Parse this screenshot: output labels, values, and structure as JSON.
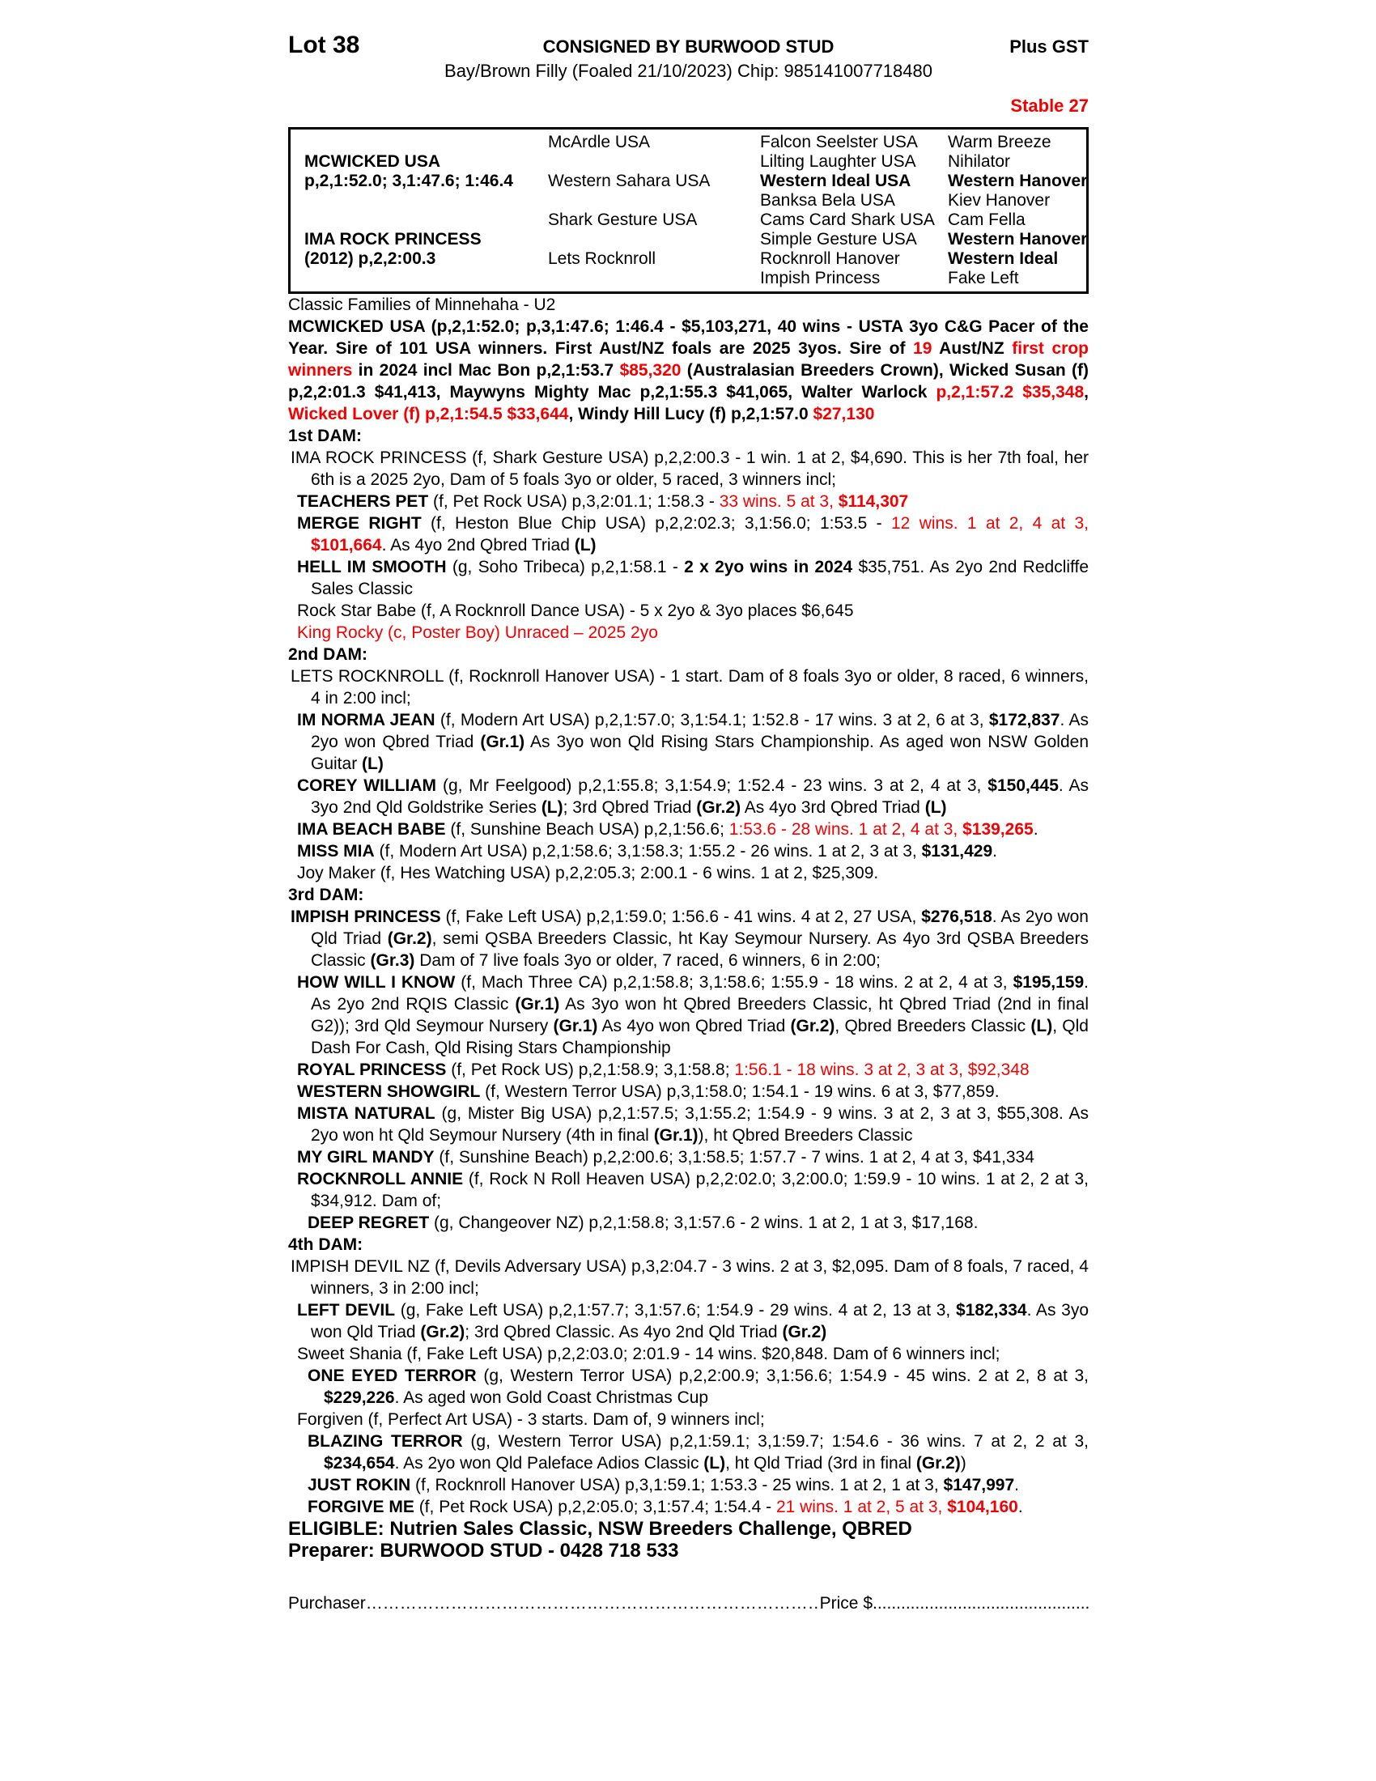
{
  "colors": {
    "accent_red": "#f40000"
  },
  "header": {
    "lot": "Lot 38",
    "consigned": "CONSIGNED BY BURWOOD STUD",
    "plus_gst": "Plus GST",
    "description": "Bay/Brown Filly (Foaled 21/10/2023) Chip: 985141007718480",
    "stable": "Stable 27"
  },
  "pedigree": {
    "sire": {
      "name": "MCWICKED USA",
      "record": "p,2,1:52.0; 3,1:47.6; 1:46.4"
    },
    "dam": {
      "name": "IMA ROCK PRINCESS",
      "record": "(2012) p,2,2:00.3"
    },
    "gen2": [
      "McArdle USA",
      "Western Sahara USA",
      "Shark Gesture USA",
      "Lets Rocknroll"
    ],
    "gen3": [
      {
        "n": "Falcon Seelster USA",
        "b": false
      },
      {
        "n": "Lilting Laughter USA",
        "b": false
      },
      {
        "n": "Western Ideal USA",
        "b": true
      },
      {
        "n": "Banksa Bela USA",
        "b": false
      },
      {
        "n": "Cams Card Shark USA",
        "b": false
      },
      {
        "n": "Simple Gesture USA",
        "b": false
      },
      {
        "n": "Rocknroll Hanover",
        "b": false
      },
      {
        "n": "Impish Princess",
        "b": false
      }
    ],
    "gen4": [
      {
        "n": "Warm Breeze",
        "b": false
      },
      {
        "n": "Nihilator",
        "b": false
      },
      {
        "n": "Western Hanover",
        "b": true
      },
      {
        "n": "Kiev Hanover",
        "b": false
      },
      {
        "n": "Cam Fella",
        "b": false
      },
      {
        "n": "Western Hanover",
        "b": true
      },
      {
        "n": "Western Ideal",
        "b": true
      },
      {
        "n": "Fake Left",
        "b": false
      }
    ]
  },
  "family_note": "Classic Families of Minnehaha - U2",
  "sire_summary": [
    {
      "t": "MCWICKED USA (p,2,1:52.0; p,3,1:47.6; 1:46.4 - $5,103,271, 40 wins - USTA 3yo C&G Pacer of the Year. Sire of 101 USA winners. First Aust/NZ foals are 2025 3yos. Sire of ",
      "s": "b"
    },
    {
      "t": "19",
      "s": "rb"
    },
    {
      "t": " Aust/NZ ",
      "s": "b"
    },
    {
      "t": "first crop winners",
      "s": "rb"
    },
    {
      "t": " in 2024 incl Mac Bon p,2,1:53.7 ",
      "s": "b"
    },
    {
      "t": "$85,320",
      "s": "rb"
    },
    {
      "t": " (Australasian Breeders Crown), Wicked Susan (f) p,2,2:01.3 $41,413, Maywyns Mighty Mac p,2,1:55.3 $41,065, Walter Warlock ",
      "s": "b"
    },
    {
      "t": "p,2,1:57.2 $35,348",
      "s": "rb"
    },
    {
      "t": ", ",
      "s": "b"
    },
    {
      "t": "Wicked Lover (f) p,2,1:54.5 $33,644",
      "s": "rb"
    },
    {
      "t": ", Windy Hill Lucy (f) p,2,1:57.0 ",
      "s": "b"
    },
    {
      "t": "$27,130",
      "s": "rb"
    }
  ],
  "labels": {
    "dam1": "1st DAM:",
    "dam2": "2nd DAM:",
    "dam3": "3rd DAM:",
    "dam4": "4th DAM:"
  },
  "entries": {
    "ima_rock_princess": [
      {
        "t": "IMA ROCK PRINCESS (f, Shark Gesture USA) p,2,2:00.3 - 1 win. 1 at 2, $4,690. This is her 7th foal, her 6th is a 2025 2yo, Dam of 5 foals 3yo or older, 5 raced, 3 winners incl;",
        "s": ""
      }
    ],
    "teachers_pet": [
      {
        "t": "TEACHERS PET",
        "s": "b"
      },
      {
        "t": " (f, Pet Rock USA) p,3,2:01.1; 1:58.3 - ",
        "s": ""
      },
      {
        "t": "33 wins. 5 at 3, ",
        "s": "r"
      },
      {
        "t": "$114,307",
        "s": "rb"
      }
    ],
    "merge_right": [
      {
        "t": "MERGE RIGHT",
        "s": "b"
      },
      {
        "t": " (f, Heston Blue Chip USA) p,2,2:02.3; 3,1:56.0; 1:53.5 - ",
        "s": ""
      },
      {
        "t": "12 wins. 1 at 2, 4 at 3, ",
        "s": "r"
      },
      {
        "t": "$101,664",
        "s": "rb"
      },
      {
        "t": ". As 4yo 2nd Qbred Triad ",
        "s": ""
      },
      {
        "t": "(L)",
        "s": "b"
      }
    ],
    "hell_im_smooth": [
      {
        "t": "HELL IM SMOOTH",
        "s": "b"
      },
      {
        "t": " (g, Soho Tribeca) p,2,1:58.1 - ",
        "s": ""
      },
      {
        "t": "2 x 2yo wins in 2024",
        "s": "b"
      },
      {
        "t": " $35,751. As 2yo 2nd Redcliffe Sales Classic",
        "s": ""
      }
    ],
    "rock_star_babe": [
      {
        "t": "Rock Star Babe (f, A Rocknroll Dance USA) - 5 x 2yo & 3yo places $6,645",
        "s": ""
      }
    ],
    "king_rocky": [
      {
        "t": "King Rocky (c, Poster Boy) Unraced – 2025 2yo",
        "s": "r"
      }
    ],
    "lets_rocknroll": [
      {
        "t": "LETS ROCKNROLL (f, Rocknroll Hanover USA) - 1 start. Dam of 8 foals 3yo or older, 8 raced, 6 winners, 4 in 2:00 incl;",
        "s": ""
      }
    ],
    "im_norma_jean": [
      {
        "t": "IM NORMA JEAN",
        "s": "b"
      },
      {
        "t": " (f, Modern Art USA) p,2,1:57.0; 3,1:54.1; 1:52.8 - 17 wins. 3 at 2, 6 at 3, ",
        "s": ""
      },
      {
        "t": "$172,837",
        "s": "b"
      },
      {
        "t": ". As 2yo won Qbred Triad ",
        "s": ""
      },
      {
        "t": "(Gr.1)",
        "s": "b"
      },
      {
        "t": " As 3yo won Qld Rising Stars Championship. As aged won NSW Golden Guitar ",
        "s": ""
      },
      {
        "t": "(L)",
        "s": "b"
      }
    ],
    "corey_william": [
      {
        "t": "COREY WILLIAM",
        "s": "b"
      },
      {
        "t": " (g, Mr Feelgood) p,2,1:55.8; 3,1:54.9; 1:52.4 - 23 wins. 3 at 2, 4 at 3, ",
        "s": ""
      },
      {
        "t": "$150,445",
        "s": "b"
      },
      {
        "t": ". As 3yo 2nd Qld Goldstrike Series ",
        "s": ""
      },
      {
        "t": "(L)",
        "s": "b"
      },
      {
        "t": "; 3rd Qbred Triad ",
        "s": ""
      },
      {
        "t": "(Gr.2)",
        "s": "b"
      },
      {
        "t": " As 4yo 3rd Qbred Triad ",
        "s": ""
      },
      {
        "t": "(L)",
        "s": "b"
      }
    ],
    "ima_beach_babe": [
      {
        "t": "IMA BEACH BABE",
        "s": "b"
      },
      {
        "t": " (f, Sunshine Beach USA) p,2,1:56.6; ",
        "s": ""
      },
      {
        "t": "1:53.6 - 28 wins. 1 at 2, 4 at 3, ",
        "s": "r"
      },
      {
        "t": "$139,265",
        "s": "rb"
      },
      {
        "t": ".",
        "s": ""
      }
    ],
    "miss_mia": [
      {
        "t": "MISS MIA",
        "s": "b"
      },
      {
        "t": " (f, Modern Art USA) p,2,1:58.6; 3,1:58.3; 1:55.2 - 26 wins. 1 at 2, 3 at 3, ",
        "s": ""
      },
      {
        "t": "$131,429",
        "s": "b"
      },
      {
        "t": ".",
        "s": ""
      }
    ],
    "joy_maker": [
      {
        "t": "Joy Maker (f, Hes Watching USA) p,2,2:05.3; 2:00.1 - 6 wins. 1 at 2, $25,309.",
        "s": ""
      }
    ],
    "impish_princess": [
      {
        "t": "IMPISH PRINCESS",
        "s": "b"
      },
      {
        "t": " (f, Fake Left USA) p,2,1:59.0; 1:56.6 - 41 wins. 4 at 2, 27 USA, ",
        "s": ""
      },
      {
        "t": "$276,518",
        "s": "b"
      },
      {
        "t": ". As 2yo won Qld Triad ",
        "s": ""
      },
      {
        "t": "(Gr.2)",
        "s": "b"
      },
      {
        "t": ", semi QSBA Breeders Classic, ht Kay Seymour Nursery. As 4yo 3rd QSBA Breeders Classic ",
        "s": ""
      },
      {
        "t": "(Gr.3)",
        "s": "b"
      },
      {
        "t": " Dam of 7 live foals 3yo or older, 7 raced, 6 winners, 6 in 2:00;",
        "s": ""
      }
    ],
    "how_will_i_know": [
      {
        "t": "HOW WILL I KNOW",
        "s": "b"
      },
      {
        "t": " (f, Mach Three CA) p,2,1:58.8; 3,1:58.6; 1:55.9 - 18 wins. 2 at 2, 4 at 3, ",
        "s": ""
      },
      {
        "t": "$195,159",
        "s": "b"
      },
      {
        "t": ". As 2yo 2nd RQIS Classic ",
        "s": ""
      },
      {
        "t": "(Gr.1)",
        "s": "b"
      },
      {
        "t": " As 3yo won ht Qbred Breeders Classic, ht Qbred Triad (2nd in final G2)); 3rd Qld Seymour Nursery ",
        "s": ""
      },
      {
        "t": "(Gr.1)",
        "s": "b"
      },
      {
        "t": " As 4yo won Qbred Triad ",
        "s": ""
      },
      {
        "t": "(Gr.2)",
        "s": "b"
      },
      {
        "t": ", Qbred Breeders Classic ",
        "s": ""
      },
      {
        "t": "(L)",
        "s": "b"
      },
      {
        "t": ", Qld Dash For Cash, Qld Rising Stars Championship",
        "s": ""
      }
    ],
    "royal_princess": [
      {
        "t": "ROYAL PRINCESS",
        "s": "b"
      },
      {
        "t": " (f, Pet Rock US) p,2,1:58.9; 3,1:58.8; ",
        "s": ""
      },
      {
        "t": "1:56.1 - 18 wins. 3 at 2, 3 at 3, $92,348",
        "s": "r"
      }
    ],
    "western_showgirl": [
      {
        "t": "WESTERN SHOWGIRL",
        "s": "b"
      },
      {
        "t": " (f, Western Terror USA) p,3,1:58.0; 1:54.1 - 19 wins. 6 at 3, $77,859.",
        "s": ""
      }
    ],
    "mista_natural": [
      {
        "t": "MISTA NATURAL",
        "s": "b"
      },
      {
        "t": " (g, Mister Big USA) p,2,1:57.5; 3,1:55.2; 1:54.9 - 9 wins. 3 at 2, 3 at 3, $55,308. As 2yo won ht Qld Seymour Nursery (4th in final ",
        "s": ""
      },
      {
        "t": "(Gr.1)",
        "s": "b"
      },
      {
        "t": "), ht Qbred Breeders Classic",
        "s": ""
      }
    ],
    "my_girl_mandy": [
      {
        "t": "MY GIRL MANDY",
        "s": "b"
      },
      {
        "t": " (f, Sunshine Beach) p,2,2:00.6; 3,1:58.5; 1:57.7 - 7 wins. 1 at 2, 4 at 3, $41,334",
        "s": ""
      }
    ],
    "rocknroll_annie": [
      {
        "t": "ROCKNROLL ANNIE",
        "s": "b"
      },
      {
        "t": " (f, Rock N Roll Heaven USA) p,2,2:02.0; 3,2:00.0; 1:59.9 - 10 wins. 1 at 2, 2 at 3, $34,912.  Dam of;",
        "s": ""
      }
    ],
    "deep_regret": [
      {
        "t": "DEEP REGRET",
        "s": "b"
      },
      {
        "t": " (g, Changeover NZ) p,2,1:58.8; 3,1:57.6 - 2 wins. 1 at 2, 1 at 3, $17,168.",
        "s": ""
      }
    ],
    "impish_devil": [
      {
        "t": "IMPISH DEVIL NZ (f, Devils Adversary USA) p,3,2:04.7 - 3 wins. 2 at 3, $2,095. Dam of 8 foals, 7 raced, 4 winners, 3 in 2:00 incl;",
        "s": ""
      }
    ],
    "left_devil": [
      {
        "t": "LEFT DEVIL",
        "s": "b"
      },
      {
        "t": " (g, Fake Left USA) p,2,1:57.7; 3,1:57.6; 1:54.9 - 29 wins. 4 at 2, 13 at 3, ",
        "s": ""
      },
      {
        "t": "$182,334",
        "s": "b"
      },
      {
        "t": ". As 3yo won Qld Triad ",
        "s": ""
      },
      {
        "t": "(Gr.2)",
        "s": "b"
      },
      {
        "t": "; 3rd Qbred Classic. As 4yo 2nd Qld Triad ",
        "s": ""
      },
      {
        "t": "(Gr.2)",
        "s": "b"
      }
    ],
    "sweet_shania": [
      {
        "t": "Sweet Shania (f, Fake Left USA) p,2,2:03.0; 2:01.9 - 14 wins. $20,848. Dam of 6 winners incl;",
        "s": ""
      }
    ],
    "one_eyed_terror": [
      {
        "t": "ONE EYED TERROR",
        "s": "b"
      },
      {
        "t": " (g, Western Terror USA) p,2,2:00.9; 3,1:56.6; 1:54.9 - 45 wins. 2 at 2, 8 at 3, ",
        "s": ""
      },
      {
        "t": "$229,226",
        "s": "b"
      },
      {
        "t": ". As aged won Gold Coast Christmas Cup",
        "s": ""
      }
    ],
    "forgiven": [
      {
        "t": "Forgiven (f, Perfect Art USA) - 3 starts. Dam of, 9 winners incl;",
        "s": ""
      }
    ],
    "blazing_terror": [
      {
        "t": "BLAZING TERROR",
        "s": "b"
      },
      {
        "t": " (g, Western Terror USA) p,2,1:59.1; 3,1:59.7; 1:54.6 - 36 wins. 7 at 2, 2 at 3, ",
        "s": ""
      },
      {
        "t": "$234,654",
        "s": "b"
      },
      {
        "t": ". As 2yo won Qld Paleface Adios Classic ",
        "s": ""
      },
      {
        "t": "(L)",
        "s": "b"
      },
      {
        "t": ", ht Qld Triad (3rd in final ",
        "s": ""
      },
      {
        "t": "(Gr.2)",
        "s": "b"
      },
      {
        "t": ")",
        "s": ""
      }
    ],
    "just_rokin": [
      {
        "t": "JUST ROKIN",
        "s": "b"
      },
      {
        "t": " (f, Rocknroll Hanover USA) p,3,1:59.1; 1:53.3 - 25 wins. 1 at 2, 1 at 3, ",
        "s": ""
      },
      {
        "t": "$147,997",
        "s": "b"
      },
      {
        "t": ".",
        "s": ""
      }
    ],
    "forgive_me": [
      {
        "t": "FORGIVE ME",
        "s": "b"
      },
      {
        "t": " (f, Pet Rock USA) p,2,2:05.0; 3,1:57.4; 1:54.4 - ",
        "s": ""
      },
      {
        "t": "21 wins. 1 at 2, 5 at 3, ",
        "s": "r"
      },
      {
        "t": "$104,160",
        "s": "rb"
      },
      {
        "t": ".",
        "s": ""
      }
    ]
  },
  "footer": {
    "eligible": "ELIGIBLE: Nutrien Sales Classic, NSW Breeders Challenge, QBRED",
    "preparer": "Preparer: BURWOOD STUD - 0428 718 533",
    "purchaser_label": "Purchaser",
    "purchaser_dots": "………………………………………………………………………………………………",
    "price_label": "Price $",
    "price_dots": "..................................................…………………………"
  }
}
